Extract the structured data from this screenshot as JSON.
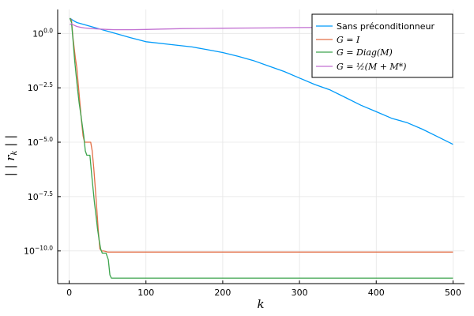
{
  "chart_data": {
    "type": "line",
    "title": "",
    "xlabel": "k",
    "ylabel": "|| r_k ||",
    "ylabel_parts": {
      "pre": "| | ",
      "var": "r",
      "sub": "k",
      "post": " | |"
    },
    "xlim": [
      -15,
      515
    ],
    "ylim_log10": [
      -11.5,
      1.1
    ],
    "y_scale": "log10",
    "grid": true,
    "legend_position": "top-right",
    "x_ticks": [
      {
        "value": 0,
        "label": "0"
      },
      {
        "value": 100,
        "label": "100"
      },
      {
        "value": 200,
        "label": "200"
      },
      {
        "value": 300,
        "label": "300"
      },
      {
        "value": 400,
        "label": "400"
      },
      {
        "value": 500,
        "label": "500"
      }
    ],
    "y_ticks": [
      {
        "value": 0.0,
        "base": "10",
        "exp": "0.0"
      },
      {
        "value": -2.5,
        "base": "10",
        "exp": "−2.5"
      },
      {
        "value": -5.0,
        "base": "10",
        "exp": "−5.0"
      },
      {
        "value": -7.5,
        "base": "10",
        "exp": "−7.5"
      },
      {
        "value": -10.0,
        "base": "10",
        "exp": "−10.0"
      }
    ],
    "series": [
      {
        "name": "Sans préconditionneur",
        "label_kind": "text",
        "color": "#009af9",
        "x": [
          1,
          5,
          10,
          20,
          40,
          60,
          80,
          100,
          130,
          160,
          180,
          200,
          220,
          240,
          260,
          280,
          300,
          320,
          340,
          360,
          380,
          400,
          420,
          440,
          460,
          480,
          500
        ],
        "y_log10": [
          0.7,
          0.6,
          0.5,
          0.4,
          0.2,
          0.0,
          -0.2,
          -0.38,
          -0.5,
          -0.62,
          -0.75,
          -0.88,
          -1.05,
          -1.25,
          -1.5,
          -1.75,
          -2.05,
          -2.35,
          -2.6,
          -2.95,
          -3.3,
          -3.6,
          -3.9,
          -4.1,
          -4.4,
          -4.75,
          -5.1
        ]
      },
      {
        "name": "G = I",
        "label_kind": "math",
        "color": "#e26f46",
        "x": [
          1,
          3,
          5,
          8,
          10,
          12,
          14,
          16,
          18,
          20,
          22,
          24,
          26,
          28,
          30,
          32,
          34,
          36,
          38,
          40,
          42,
          45,
          50,
          100,
          200,
          300,
          400,
          500
        ],
        "y_log10": [
          0.7,
          0.6,
          -0.2,
          -1.1,
          -1.6,
          -2.4,
          -3.2,
          -4.0,
          -4.7,
          -5.0,
          -5.0,
          -5.0,
          -5.0,
          -5.0,
          -5.4,
          -6.2,
          -7.1,
          -8.1,
          -9.1,
          -9.9,
          -10.0,
          -10.0,
          -10.05,
          -10.05,
          -10.05,
          -10.05,
          -10.05,
          -10.05
        ]
      },
      {
        "name": "G = Diag(M)",
        "label_kind": "math",
        "color": "#3da44d",
        "x": [
          1,
          3,
          5,
          7,
          9,
          11,
          13,
          15,
          17,
          19,
          21,
          23,
          25,
          27,
          29,
          31,
          33,
          35,
          37,
          39,
          41,
          43,
          45,
          48,
          51,
          53,
          55,
          60,
          100,
          200,
          300,
          400,
          500
        ],
        "y_log10": [
          0.7,
          0.5,
          -0.3,
          -1.2,
          -1.9,
          -2.6,
          -3.2,
          -3.7,
          -4.2,
          -4.7,
          -5.4,
          -5.6,
          -5.6,
          -5.6,
          -6.4,
          -7.1,
          -7.8,
          -8.4,
          -9.0,
          -9.5,
          -9.9,
          -10.1,
          -10.1,
          -10.1,
          -10.4,
          -11.1,
          -11.25,
          -11.25,
          -11.25,
          -11.25,
          -11.25,
          -11.25,
          -11.25
        ]
      },
      {
        "name": "G = ½(M + M*)",
        "label_kind": "math",
        "color": "#c271d2",
        "x": [
          1,
          3,
          5,
          10,
          15,
          20,
          30,
          40,
          50,
          60,
          80,
          100,
          120,
          150,
          200,
          250,
          300,
          350,
          400,
          450,
          500
        ],
        "y_log10": [
          0.4,
          0.45,
          0.4,
          0.32,
          0.28,
          0.25,
          0.22,
          0.2,
          0.18,
          0.17,
          0.17,
          0.18,
          0.2,
          0.22,
          0.24,
          0.25,
          0.27,
          0.28,
          0.29,
          0.31,
          0.33
        ]
      }
    ]
  }
}
